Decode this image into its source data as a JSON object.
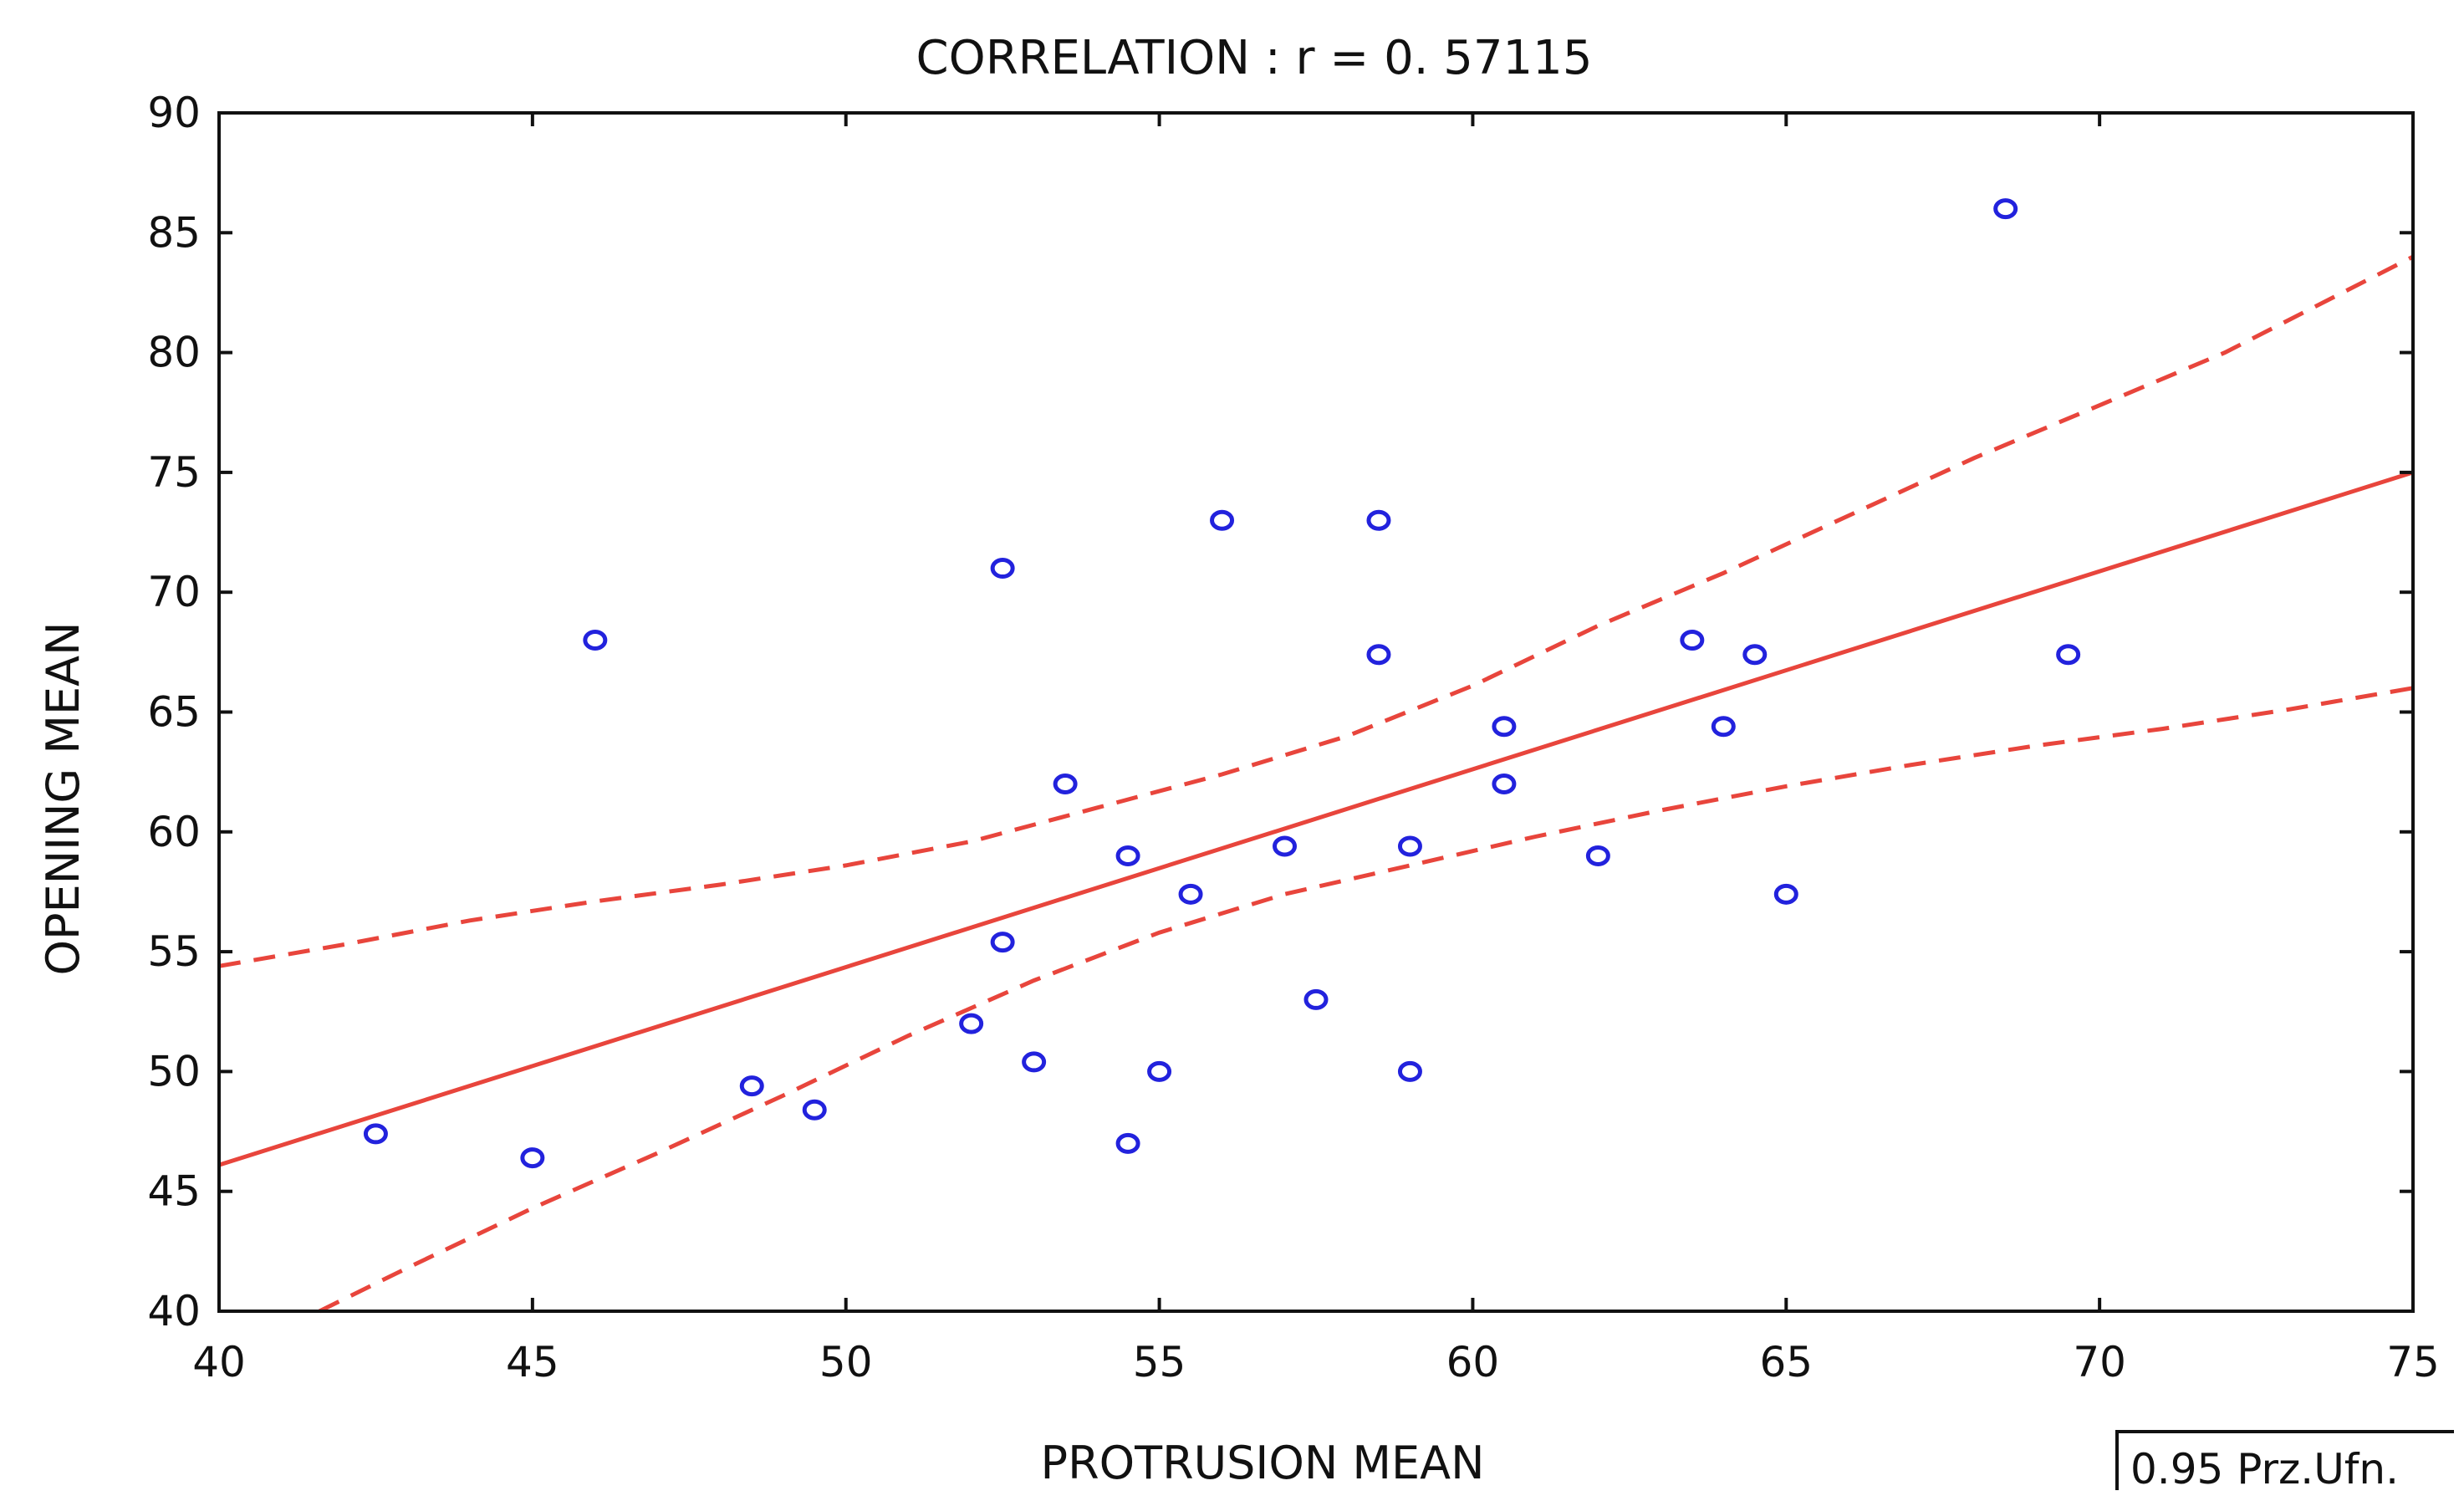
{
  "chart_data": {
    "type": "scatter",
    "title": "CORRELATION : r = 0. 57115",
    "xlabel": "PROTRUSION  MEAN",
    "ylabel": "OPENING  MEAN",
    "xlim": [
      40,
      75
    ],
    "ylim": [
      40,
      90
    ],
    "xticks": [
      40,
      45,
      50,
      55,
      60,
      65,
      70,
      75
    ],
    "yticks": [
      40,
      45,
      50,
      55,
      60,
      65,
      70,
      75,
      80,
      85,
      90
    ],
    "grid": false,
    "legend": {
      "label": "0.95 Prz.Ufn.",
      "position": "bottom-right"
    },
    "points": [
      [
        42.5,
        47.4
      ],
      [
        45,
        46.4
      ],
      [
        46,
        68
      ],
      [
        48.5,
        49.4
      ],
      [
        49.5,
        48.4
      ],
      [
        52,
        52
      ],
      [
        52.5,
        71
      ],
      [
        52.5,
        55.4
      ],
      [
        53,
        50.4
      ],
      [
        53.5,
        62
      ],
      [
        54.5,
        59
      ],
      [
        54.5,
        47
      ],
      [
        55,
        50
      ],
      [
        55.5,
        57.4
      ],
      [
        56,
        73
      ],
      [
        57,
        59.4
      ],
      [
        57.5,
        53
      ],
      [
        58.5,
        73
      ],
      [
        58.5,
        67.4
      ],
      [
        59,
        59.4
      ],
      [
        59,
        50
      ],
      [
        60.5,
        64.4
      ],
      [
        60.5,
        62
      ],
      [
        62,
        59
      ],
      [
        63.5,
        68
      ],
      [
        64,
        64.4
      ],
      [
        64.5,
        67.4
      ],
      [
        65,
        57.4
      ],
      [
        68.5,
        86
      ],
      [
        69.5,
        67.4
      ]
    ],
    "regression_line": {
      "x": [
        40,
        75
      ],
      "y": [
        46.1,
        75
      ]
    },
    "confidence_upper": {
      "x": [
        40,
        42,
        44,
        46,
        48,
        50,
        52,
        54,
        56,
        58,
        60,
        62,
        64,
        66,
        68,
        70,
        72,
        75
      ],
      "y": [
        54.4,
        55.3,
        56.3,
        57.1,
        57.8,
        58.6,
        59.6,
        61.0,
        62.4,
        64.0,
        66.1,
        68.6,
        70.8,
        73.2,
        75.6,
        77.8,
        80.0,
        84.0
      ]
    },
    "confidence_lower": {
      "x": [
        41.6,
        43,
        45,
        47,
        49,
        51,
        53,
        55,
        57,
        59,
        61,
        63,
        65,
        67,
        69,
        71,
        73,
        75
      ],
      "y": [
        40.0,
        41.8,
        44.3,
        46.6,
        49.0,
        51.5,
        53.8,
        55.8,
        57.4,
        58.6,
        59.8,
        60.9,
        61.9,
        62.8,
        63.6,
        64.3,
        65.1,
        66.0
      ]
    },
    "colors": {
      "points": "#2222dd",
      "fit": "#e8453c",
      "axes": "#111111",
      "text": "#111111"
    }
  }
}
